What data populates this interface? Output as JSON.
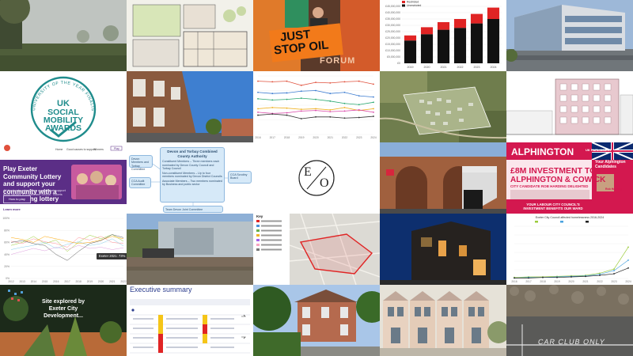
{
  "grid": {
    "rows": 5,
    "columns": 5
  },
  "tiles": {
    "t01": {
      "subject": "misty-field-photo"
    },
    "t02": {
      "subject": "architectural-floor-plan"
    },
    "t03": {
      "subject": "just-stop-oil-protest-photo",
      "banner_line1": "JUST",
      "banner_line2": "STOP OIL",
      "backdrop": "FORUM"
    },
    "t04": {
      "subject": "stacked-bar-chart"
    },
    "t05": {
      "subject": "modern-office-building-photo"
    },
    "t06": {
      "subject": "uk-social-mobility-awards-logo",
      "arc_text": "UNIVERSITY OF THE YEAR FINALIST",
      "line1": "UK",
      "line2": "SOCIAL",
      "line3": "MOBILITY",
      "line4": "AWARDS"
    },
    "t07": {
      "subject": "terraced-houses-photo"
    },
    "t08": {
      "subject": "multi-line-chart"
    },
    "t09": {
      "subject": "aerial-map-housing-development"
    },
    "t10": {
      "subject": "apartment-block-elevation-drawing"
    },
    "t11": {
      "subject": "lottery-web-page",
      "nav": [
        "Home",
        "Good causes to support",
        "Winners",
        "Play"
      ],
      "headline": "Play Exeter Community Lottery and support your community with a fundraising lottery",
      "body": "All the funds raised from every ticket support good causes in Exeter and Devon. Tickets from £1 a week.",
      "button": "How to play",
      "more_link": "Learn more"
    },
    "t12": {
      "subject": "governance-flowchart",
      "left_top": "Devon Members and Torbay Committee",
      "left_bottom": "CCA Audit Committee",
      "center_title": "Devon and Torbay Combined County Authority",
      "center_body_1": "Constituent Members – Three members each nominated by Devon County Council and Torbay Council",
      "center_body_2": "Non-constituent Members – Up to four members nominated by Devon District Councils",
      "center_body_3": "Associate Members – Two members nominated by Business and public sector",
      "right": "CCA Scrutiny Board",
      "bottom": "Team Devon Joint Committee"
    },
    "t13": {
      "subject": "e-slash-o-logo",
      "letters_left": "E",
      "letters_right": "O"
    },
    "t14": {
      "subject": "railway-station-stairs-photo"
    },
    "t15": {
      "subject": "alphington-labour-leaflet",
      "headline": "ALPHINGTON",
      "amount_line": "£8M INVESTMENT TO",
      "place_line": "ALPHINGTON & COWICK",
      "sub_line": "CITY CANDIDATE ROB HARDING DELIGHTED",
      "side_title": "Your Alphington Candidates",
      "candidate": "Rob Harding",
      "footer": "YOUR LABOUR CITY COUNCIL'S INVESTMENT BENEFITS OUR WARD",
      "top_tag": "UK PARLIAMENT"
    },
    "t16": {
      "subject": "multi-series-line-chart-with-tooltip",
      "tooltip": "Exeter 2021: 73%"
    },
    "t17": {
      "subject": "riverside-quay-photo"
    },
    "t18": {
      "subject": "boundary-map-with-legend",
      "legend_title": "Key"
    },
    "t19": {
      "subject": "night-building-photo"
    },
    "t20": {
      "subject": "line-chart-three-series"
    },
    "t21": {
      "subject": "garden-site-photo",
      "caption_line1": "Site explored by",
      "caption_line2": "Exeter City",
      "caption_line3": "Development..."
    },
    "t22": {
      "subject": "executive-summary-table",
      "title": "Executive summary"
    },
    "t23": {
      "subject": "victorian-villa-photo"
    },
    "t24": {
      "subject": "terraced-townhouses-render"
    },
    "t25": {
      "subject": "car-club-parking-bay-photo",
      "road_marking": "CAR CLUB ONLY"
    }
  },
  "chart_data": [
    {
      "type": "bar",
      "title": "",
      "series": [
        {
          "name": "Unrestricted",
          "color": "#111111",
          "values": [
            18000000,
            23000000,
            26500000,
            28000000,
            31500000,
            35000000
          ]
        },
        {
          "name": "Restricted",
          "color": "#e02424",
          "values": [
            4000000,
            5500000,
            6000000,
            7000000,
            7500000,
            9000000
          ]
        }
      ],
      "categories": [
        "2019",
        "2020",
        "2021",
        "2022",
        "2023",
        "2024"
      ],
      "ylim": [
        0,
        45000000
      ],
      "legend": "top-left"
    },
    {
      "type": "line",
      "x": [
        "2016",
        "2017",
        "2018",
        "2019",
        "2020",
        "2021",
        "2022",
        "2023",
        "2024"
      ],
      "series": [
        {
          "color": "#e0503c",
          "values": [
            91,
            90,
            91,
            84,
            89,
            88,
            90,
            91,
            86
          ]
        },
        {
          "color": "#3b7bd0",
          "values": [
            72,
            70,
            71,
            74,
            75,
            70,
            72,
            66,
            64
          ]
        },
        {
          "color": "#2aa870",
          "values": [
            61,
            59,
            60,
            62,
            60,
            57,
            53,
            51,
            55
          ]
        },
        {
          "color": "#f0b429",
          "values": [
            44,
            46,
            45,
            43,
            44,
            42,
            46,
            41,
            44
          ]
        },
        {
          "color": "#d946a8",
          "values": [
            38,
            36,
            37,
            40,
            41,
            39,
            40,
            42,
            38
          ]
        },
        {
          "color": "#333333",
          "values": [
            33,
            35,
            33,
            27,
            30,
            30,
            28,
            29,
            31
          ]
        }
      ],
      "ylim": [
        0,
        100
      ]
    },
    {
      "type": "line",
      "x": [
        "2012",
        "2013",
        "2014",
        "2015",
        "2016",
        "2017",
        "2018",
        "2019",
        "2020",
        "2021",
        "2022"
      ],
      "series": [
        {
          "color": "#9acd32",
          "values": [
            55,
            60,
            70,
            58,
            64,
            45,
            60,
            72,
            66,
            73,
            62
          ]
        },
        {
          "color": "#ff8c94",
          "values": [
            62,
            58,
            66,
            61,
            58,
            52,
            68,
            64,
            70,
            60,
            58
          ]
        },
        {
          "color": "#87ceeb",
          "values": [
            48,
            52,
            55,
            60,
            50,
            57,
            61,
            55,
            58,
            66,
            54
          ]
        },
        {
          "color": "#ffa500",
          "values": [
            68,
            65,
            60,
            70,
            66,
            62,
            58,
            60,
            64,
            70,
            66
          ]
        },
        {
          "color": "#dda0dd",
          "values": [
            40,
            45,
            50,
            46,
            52,
            48,
            55,
            50,
            52,
            48,
            51
          ]
        },
        {
          "color": "#555555",
          "values": [
            60,
            63,
            58,
            55,
            40,
            30,
            45,
            58,
            63,
            73,
            68
          ]
        }
      ],
      "ylim": [
        0,
        100
      ]
    },
    {
      "type": "line",
      "title": "Exeter City Council affected homelessness 2016-2024",
      "x": [
        "2016",
        "2017",
        "2018",
        "2019",
        "2020",
        "2021",
        "2022",
        "2023",
        "2024"
      ],
      "series": [
        {
          "name": "Series A",
          "color": "#9ccc3c",
          "values": [
            2,
            3,
            3,
            4,
            5,
            6,
            10,
            18,
            60
          ]
        },
        {
          "name": "Series B",
          "color": "#4aa3df",
          "values": [
            1,
            2,
            2,
            3,
            4,
            5,
            8,
            15,
            35
          ]
        },
        {
          "name": "Series C",
          "color": "#222222",
          "values": [
            1,
            1,
            2,
            2,
            3,
            4,
            6,
            9,
            20
          ]
        }
      ],
      "ylim": [
        0,
        100
      ]
    }
  ]
}
